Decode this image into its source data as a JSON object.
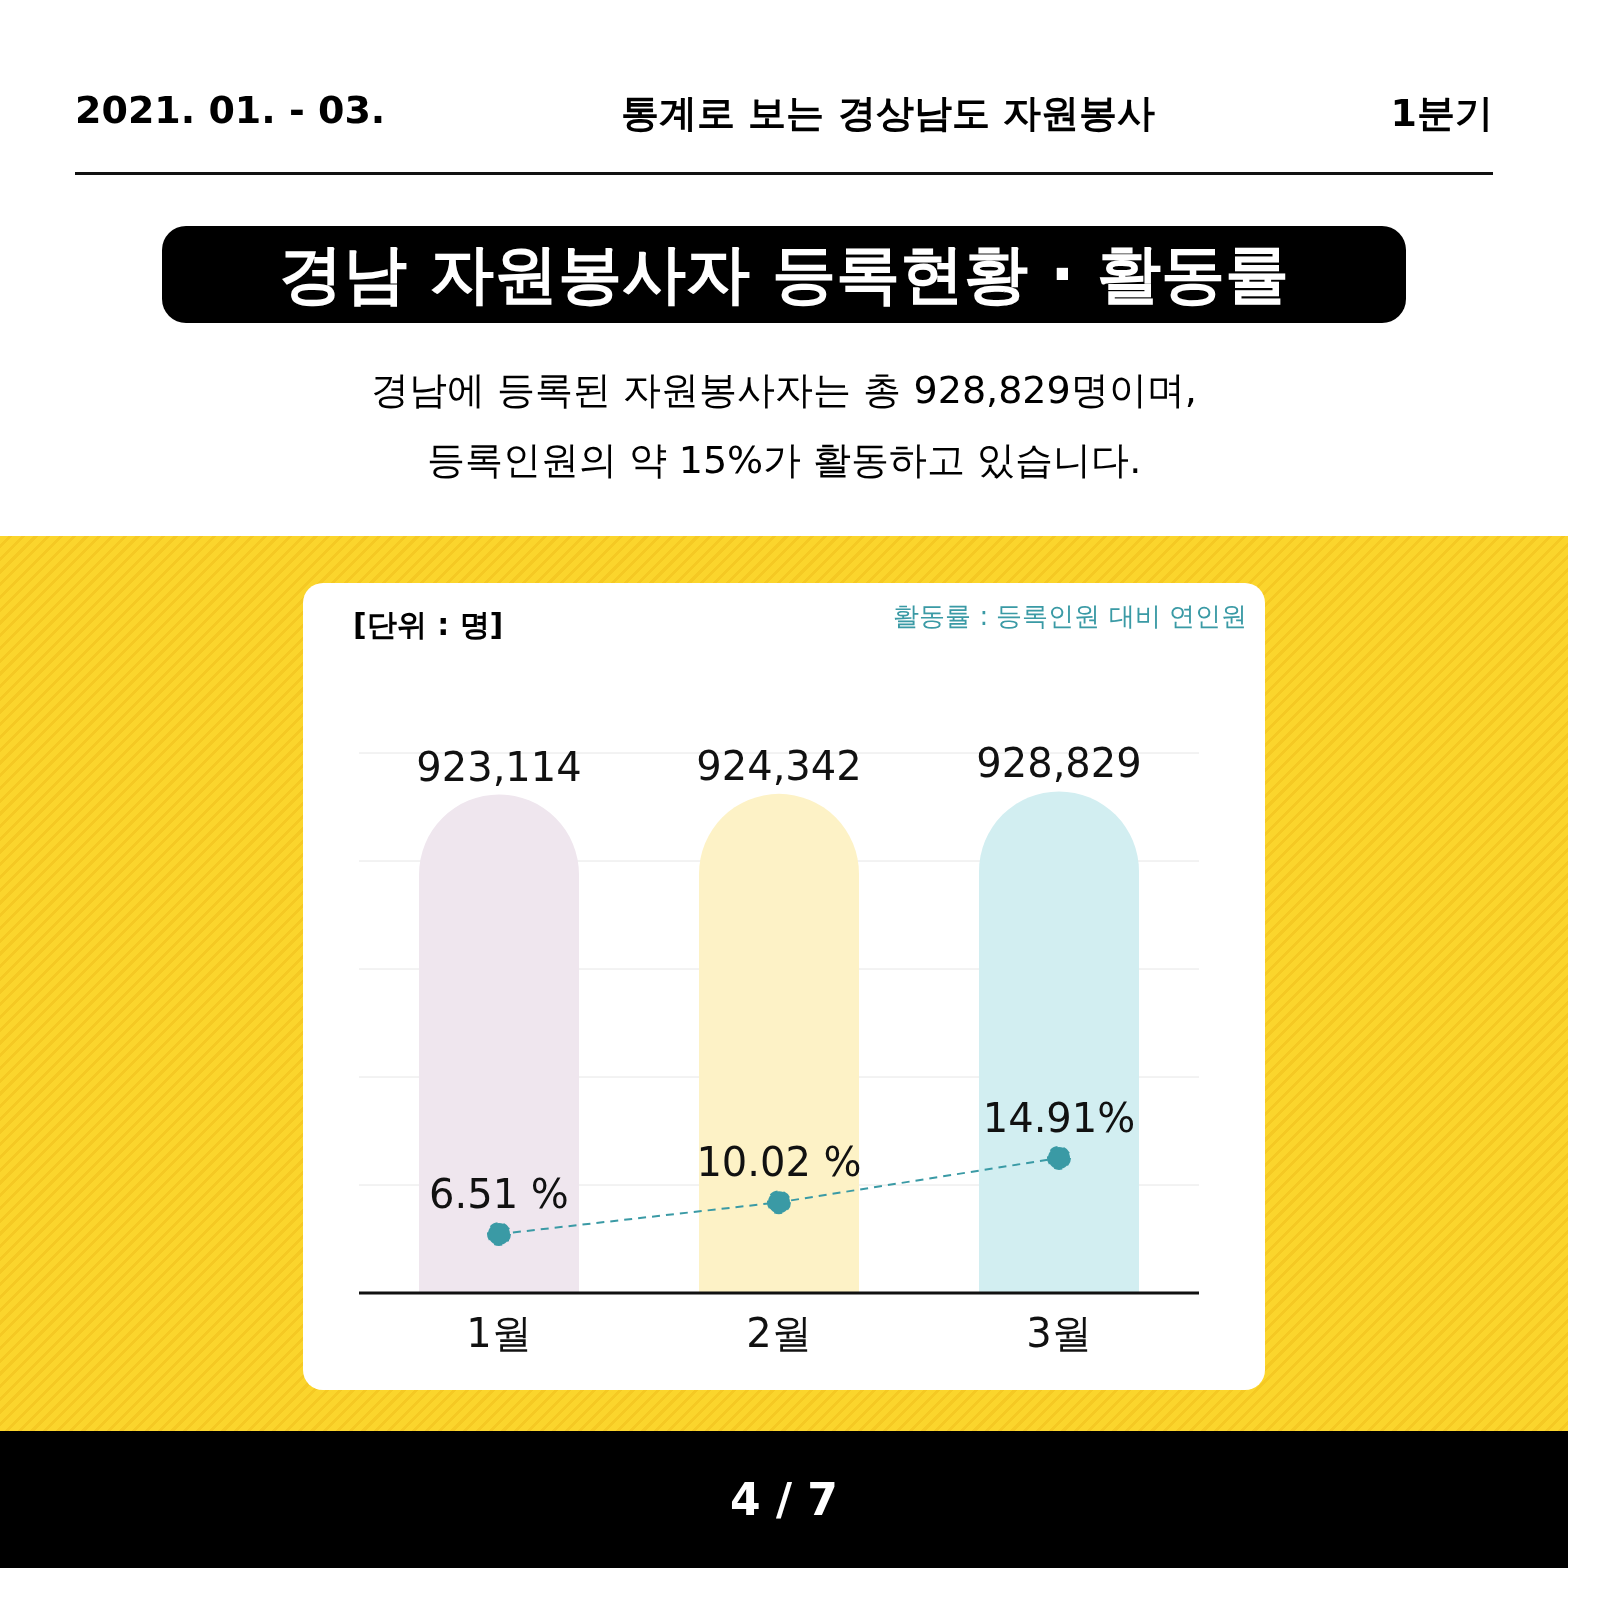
{
  "chart_data": {
    "type": "bar",
    "title": "경남 자원봉사자 등록현황 · 활동률",
    "subtitle": "경남에 등록된 자원봉사자는 총 928,829명이며,\n등록인원의 약 15%가 활동하고 있습니다.",
    "annotations": [
      "2021. 01. - 03.",
      "통계로 보는 경상남도 자원봉사",
      "1분기",
      "[단위 : 명]",
      "활동률 : 등록인원 대비 연인원",
      "4 / 7"
    ],
    "categories": [
      "1월",
      "2월",
      "3월"
    ],
    "series": [
      {
        "colors": [
          "#efe6ee",
          "#fdf2c6",
          "#d2eef1"
        ],
        "values": [
          923114,
          924342,
          928829
        ],
        "value_labels": [
          "923,114",
          "924,342",
          "928,829"
        ]
      },
      {
        "type": "line",
        "axis": "y2",
        "color": "#3a9aa5",
        "values": [
          6.51,
          10.02,
          14.91
        ],
        "value_labels": [
          "6.51 %",
          "10.02 %",
          "14.91%"
        ],
        "marker": "circle",
        "line_style": "dashed"
      }
    ],
    "ylim": [
      0,
      1000000
    ],
    "yticks": [
      {
        "value": 0,
        "label": null
      },
      {
        "value": 200000,
        "label": null
      },
      {
        "value": 400000,
        "label": null
      },
      {
        "value": 600000,
        "label": null
      },
      {
        "value": 800000,
        "label": null
      },
      {
        "value": 1000000,
        "label": null
      }
    ],
    "grid": "y",
    "legend": false
  }
}
